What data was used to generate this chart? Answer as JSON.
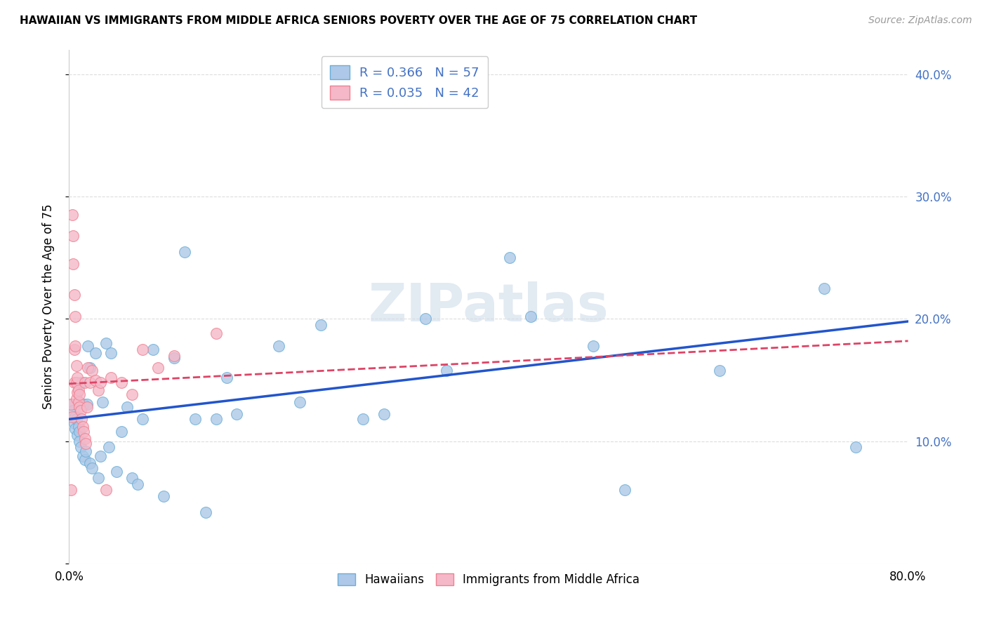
{
  "title": "HAWAIIAN VS IMMIGRANTS FROM MIDDLE AFRICA SENIORS POVERTY OVER THE AGE OF 75 CORRELATION CHART",
  "source": "Source: ZipAtlas.com",
  "ylabel": "Seniors Poverty Over the Age of 75",
  "xlim": [
    0.0,
    0.8
  ],
  "ylim": [
    0.0,
    0.42
  ],
  "blue_color": "#6aaed6",
  "pink_color": "#f08090",
  "blue_fill": "#adc8e8",
  "pink_fill": "#f4b8c8",
  "trend_blue_color": "#2255cc",
  "trend_pink_color": "#dd4466",
  "watermark": "ZIPatlas",
  "blue_trend_start": 0.118,
  "blue_trend_end": 0.198,
  "pink_trend_start": 0.147,
  "pink_trend_end": 0.182,
  "hawaiians_x": [
    0.003,
    0.004,
    0.005,
    0.006,
    0.006,
    0.007,
    0.008,
    0.009,
    0.01,
    0.01,
    0.011,
    0.012,
    0.013,
    0.014,
    0.015,
    0.016,
    0.017,
    0.018,
    0.02,
    0.02,
    0.022,
    0.025,
    0.028,
    0.03,
    0.032,
    0.035,
    0.038,
    0.04,
    0.045,
    0.05,
    0.055,
    0.06,
    0.065,
    0.07,
    0.08,
    0.09,
    0.1,
    0.11,
    0.12,
    0.13,
    0.14,
    0.15,
    0.16,
    0.2,
    0.22,
    0.24,
    0.28,
    0.3,
    0.34,
    0.36,
    0.42,
    0.44,
    0.5,
    0.53,
    0.62,
    0.72,
    0.75
  ],
  "hawaiians_y": [
    0.13,
    0.125,
    0.115,
    0.12,
    0.11,
    0.118,
    0.105,
    0.112,
    0.108,
    0.1,
    0.095,
    0.148,
    0.088,
    0.13,
    0.085,
    0.092,
    0.13,
    0.178,
    0.082,
    0.16,
    0.078,
    0.172,
    0.07,
    0.088,
    0.132,
    0.18,
    0.095,
    0.172,
    0.075,
    0.108,
    0.128,
    0.07,
    0.065,
    0.118,
    0.175,
    0.055,
    0.168,
    0.255,
    0.118,
    0.042,
    0.118,
    0.152,
    0.122,
    0.178,
    0.132,
    0.195,
    0.118,
    0.122,
    0.2,
    0.158,
    0.25,
    0.202,
    0.178,
    0.06,
    0.158,
    0.225,
    0.095
  ],
  "immigrants_x": [
    0.002,
    0.002,
    0.003,
    0.003,
    0.004,
    0.004,
    0.005,
    0.005,
    0.005,
    0.006,
    0.006,
    0.007,
    0.007,
    0.007,
    0.008,
    0.008,
    0.009,
    0.009,
    0.01,
    0.01,
    0.011,
    0.012,
    0.013,
    0.014,
    0.015,
    0.015,
    0.016,
    0.017,
    0.018,
    0.02,
    0.022,
    0.025,
    0.028,
    0.03,
    0.035,
    0.04,
    0.05,
    0.06,
    0.07,
    0.085,
    0.1,
    0.14
  ],
  "immigrants_y": [
    0.13,
    0.06,
    0.12,
    0.285,
    0.268,
    0.245,
    0.22,
    0.175,
    0.148,
    0.202,
    0.178,
    0.162,
    0.148,
    0.135,
    0.152,
    0.14,
    0.142,
    0.132,
    0.138,
    0.128,
    0.125,
    0.118,
    0.112,
    0.108,
    0.102,
    0.148,
    0.098,
    0.128,
    0.16,
    0.148,
    0.158,
    0.15,
    0.142,
    0.148,
    0.06,
    0.152,
    0.148,
    0.138,
    0.175,
    0.16,
    0.17,
    0.188
  ]
}
